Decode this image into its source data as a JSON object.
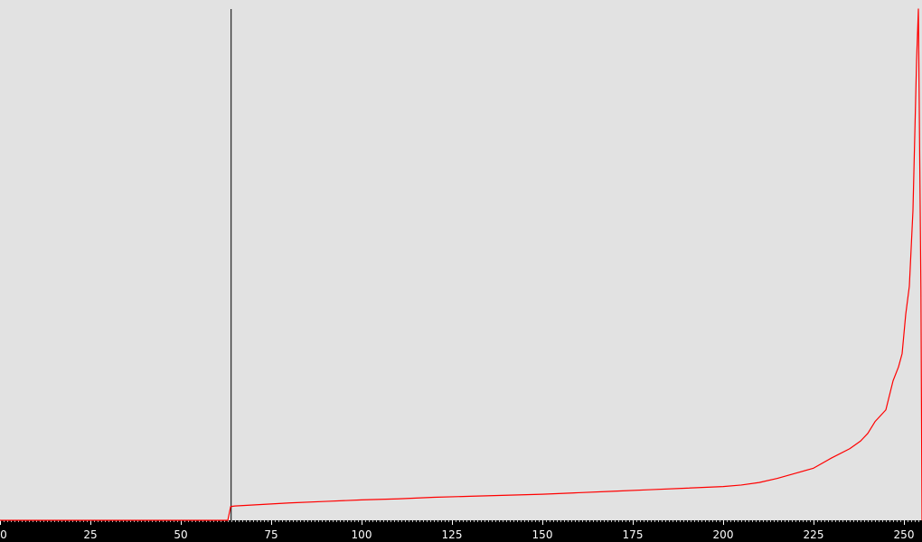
{
  "chart_data": {
    "type": "line",
    "xlim": [
      0,
      255
    ],
    "ylim": [
      0,
      100
    ],
    "x_ticks": [
      0,
      25,
      50,
      75,
      100,
      125,
      150,
      175,
      200,
      225,
      250
    ],
    "x_tick_labels": [
      "0",
      "25",
      "50",
      "75",
      "100",
      "125",
      "150",
      "175",
      "200",
      "225",
      "250"
    ],
    "grid": false,
    "marker_line": {
      "x": 63.8,
      "color": "#000000"
    },
    "series": [
      {
        "color": "#ff0000",
        "points": [
          [
            0,
            0
          ],
          [
            63,
            0
          ],
          [
            63.8,
            2.7
          ],
          [
            65,
            2.8
          ],
          [
            70,
            3.0
          ],
          [
            75,
            3.2
          ],
          [
            80,
            3.4
          ],
          [
            90,
            3.7
          ],
          [
            100,
            4.0
          ],
          [
            110,
            4.2
          ],
          [
            120,
            4.5
          ],
          [
            130,
            4.7
          ],
          [
            140,
            4.9
          ],
          [
            150,
            5.1
          ],
          [
            160,
            5.4
          ],
          [
            170,
            5.7
          ],
          [
            180,
            6.0
          ],
          [
            190,
            6.3
          ],
          [
            200,
            6.6
          ],
          [
            205,
            6.9
          ],
          [
            210,
            7.4
          ],
          [
            215,
            8.2
          ],
          [
            220,
            9.2
          ],
          [
            225,
            10.2
          ],
          [
            230,
            12.2
          ],
          [
            235,
            14.0
          ],
          [
            238,
            15.5
          ],
          [
            240,
            17.0
          ],
          [
            242,
            19.3
          ],
          [
            245,
            21.6
          ],
          [
            247,
            27.3
          ],
          [
            248.5,
            30.0
          ],
          [
            249.5,
            32.6
          ],
          [
            250.5,
            40.3
          ],
          [
            251.5,
            45.8
          ],
          [
            252.5,
            60.6
          ],
          [
            253.5,
            90.0
          ],
          [
            254.0,
            100.0
          ],
          [
            254.7,
            45.0
          ],
          [
            255,
            0
          ]
        ]
      }
    ]
  }
}
